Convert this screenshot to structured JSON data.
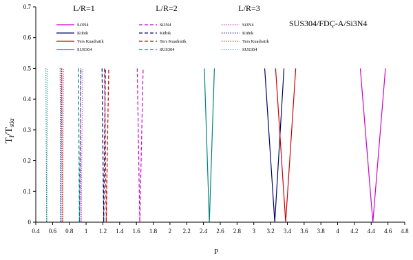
{
  "chart_data": {
    "type": "line",
    "title": "SUS304/FDÇ-A/Si3N4",
    "xlabel": "P",
    "ylabel": {
      "main": "T",
      "sub1": "l",
      "sep": "/T",
      "sub2": "stkr"
    },
    "xlim": [
      0.4,
      4.8
    ],
    "ylim": [
      0,
      0.7
    ],
    "xticks": [
      "0.4",
      "0.6",
      "0.8",
      "1",
      "1.2",
      "1.4",
      "1.6",
      "1.8",
      "2",
      "2.2",
      "2.4",
      "2.6",
      "2.8",
      "3",
      "3.2",
      "3.4",
      "3.6",
      "3.8",
      "4",
      "4.2",
      "4.4",
      "4.6",
      "4.8"
    ],
    "yticks": [
      "0",
      "0.1",
      "0.2",
      "0.3",
      "0.4",
      "0.5",
      "0.6",
      "0.7"
    ],
    "grid": false,
    "groups": [
      {
        "label": "L/R=1",
        "dash": "solid"
      },
      {
        "label": "L/R=2",
        "dash": "dash"
      },
      {
        "label": "L/R=3",
        "dash": "dot"
      }
    ],
    "legend": {
      "position": "top",
      "names": [
        "Si3N4",
        "Kübik",
        "Ters Kuadratik",
        "SUS304"
      ],
      "colors": [
        "#cc00cc",
        "#000066",
        "#cc0000",
        "#008080"
      ]
    },
    "series": [
      {
        "name": "Si3N4",
        "group": 0,
        "color": "#cc00cc",
        "x_bottom": 4.42,
        "x_left": 4.27,
        "x_right": 4.57
      },
      {
        "name": "Kübik",
        "group": 0,
        "color": "#000066",
        "x_bottom": 3.25,
        "x_left": 3.13,
        "x_right": 3.36
      },
      {
        "name": "Ters Kuadratik",
        "group": 0,
        "color": "#cc0000",
        "x_bottom": 3.38,
        "x_left": 3.26,
        "x_right": 3.5
      },
      {
        "name": "SUS304",
        "group": 0,
        "color": "#008080",
        "x_bottom": 2.47,
        "x_left": 2.41,
        "x_right": 2.53
      },
      {
        "name": "Si3N4",
        "group": 1,
        "color": "#cc00cc",
        "x_bottom": 1.64,
        "x_left": 1.61,
        "x_right": 1.68
      },
      {
        "name": "Kübik",
        "group": 1,
        "color": "#000066",
        "x_bottom": 1.21,
        "x_left": 1.19,
        "x_right": 1.23
      },
      {
        "name": "Ters Kuadratik",
        "group": 1,
        "color": "#cc0000",
        "x_bottom": 1.24,
        "x_left": 1.22,
        "x_right": 1.27
      },
      {
        "name": "SUS304",
        "group": 1,
        "color": "#008080",
        "x_bottom": 0.92,
        "x_left": 0.91,
        "x_right": 0.94
      },
      {
        "name": "Si3N4",
        "group": 2,
        "color": "#cc00cc",
        "x_bottom": 0.94,
        "x_left": 0.93,
        "x_right": 0.96
      },
      {
        "name": "Kübik",
        "group": 2,
        "color": "#000066",
        "x_bottom": 0.7,
        "x_left": 0.69,
        "x_right": 0.71
      },
      {
        "name": "Ters Kuadratik",
        "group": 2,
        "color": "#cc0000",
        "x_bottom": 0.72,
        "x_left": 0.71,
        "x_right": 0.73
      },
      {
        "name": "SUS304",
        "group": 2,
        "color": "#008080",
        "x_bottom": 0.53,
        "x_left": 0.52,
        "x_right": 0.54
      }
    ],
    "y_top": 0.5
  }
}
